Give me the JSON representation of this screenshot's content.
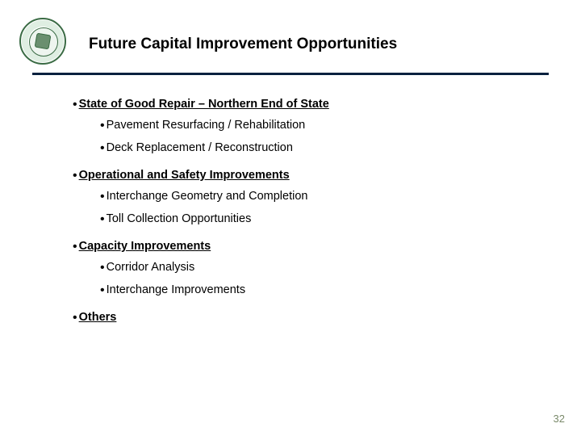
{
  "slide": {
    "title": "Future Capital Improvement Opportunities",
    "page_number": "32",
    "rule_color": "#08213f",
    "seal_color": "#3a6b44"
  },
  "bullets": [
    {
      "label": "State of Good Repair – Northern End of State",
      "children": [
        {
          "label": "Pavement Resurfacing / Rehabilitation"
        },
        {
          "label": "Deck Replacement  / Reconstruction"
        }
      ]
    },
    {
      "label": "Operational and Safety Improvements",
      "children": [
        {
          "label": "Interchange Geometry and Completion"
        },
        {
          "label": "Toll Collection Opportunities"
        }
      ]
    },
    {
      "label": "Capacity Improvements",
      "children": [
        {
          "label": "Corridor Analysis"
        },
        {
          "label": "Interchange Improvements"
        }
      ]
    },
    {
      "label": "Others",
      "children": []
    }
  ]
}
